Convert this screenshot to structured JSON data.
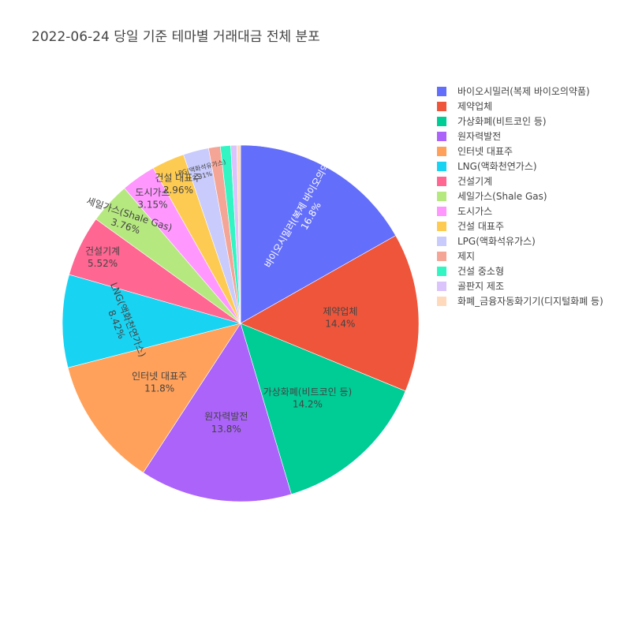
{
  "chart_data": {
    "type": "pie",
    "title": "2022-06-24 당일 기준 테마별 거래대금 전체 분포",
    "direction": "clockwise",
    "start": "12 o'clock",
    "legend_position": "right",
    "slices": [
      {
        "label": "바이오시밀러(복제 바이오의약품)",
        "percent": 16.8,
        "percent_text": "16.8%",
        "color": "#636efa",
        "text_color": "#ffffff"
      },
      {
        "label": "제약업체",
        "percent": 14.4,
        "percent_text": "14.4%",
        "color": "#ef553b",
        "text_color": "#444444"
      },
      {
        "label": "가상화폐(비트코인 등)",
        "percent": 14.2,
        "percent_text": "14.2%",
        "color": "#00cc96",
        "text_color": "#444444"
      },
      {
        "label": "원자력발전",
        "percent": 13.8,
        "percent_text": "13.8%",
        "color": "#ab63fa",
        "text_color": "#444444"
      },
      {
        "label": "인터넷 대표주",
        "percent": 11.8,
        "percent_text": "11.8%",
        "color": "#ffa15a",
        "text_color": "#444444"
      },
      {
        "label": "LNG(액화천연가스)",
        "percent": 8.42,
        "percent_text": "8.42%",
        "color": "#19d3f3",
        "text_color": "#444444"
      },
      {
        "label": "건설기계",
        "percent": 5.52,
        "percent_text": "5.52%",
        "color": "#ff6692",
        "text_color": "#444444"
      },
      {
        "label": "세일가스(Shale Gas)",
        "percent": 3.76,
        "percent_text": "3.76%",
        "color": "#b6e880",
        "text_color": "#444444"
      },
      {
        "label": "도시가스",
        "percent": 3.15,
        "percent_text": "3.15%",
        "color": "#ff97ff",
        "text_color": "#444444"
      },
      {
        "label": "건설 대표주",
        "percent": 2.96,
        "percent_text": "2.96%",
        "color": "#fecb52",
        "text_color": "#444444"
      },
      {
        "label": "LPG(액화석유가스)",
        "percent": 2.31,
        "percent_text": "2.31%",
        "color": "#c8cbfc",
        "text_color": "#444444"
      },
      {
        "label": "제지",
        "percent": 1.06,
        "percent_text": "1.06%",
        "color": "#f5a596",
        "text_color": "#444444"
      },
      {
        "label": "건설 중소형",
        "percent": 0.94,
        "percent_text": "0.94%",
        "color": "#33f5c4",
        "text_color": "#444444"
      },
      {
        "label": "골판지 제조",
        "percent": 0.55,
        "percent_text": "0.55%",
        "color": "#dbc3fc",
        "text_color": "#444444"
      },
      {
        "label": "화폐_금융자동화기기(디지털화폐 등)",
        "percent": 0.33,
        "percent_text": "0.33%",
        "color": "#ffd9bc",
        "text_color": "#444444"
      }
    ]
  }
}
